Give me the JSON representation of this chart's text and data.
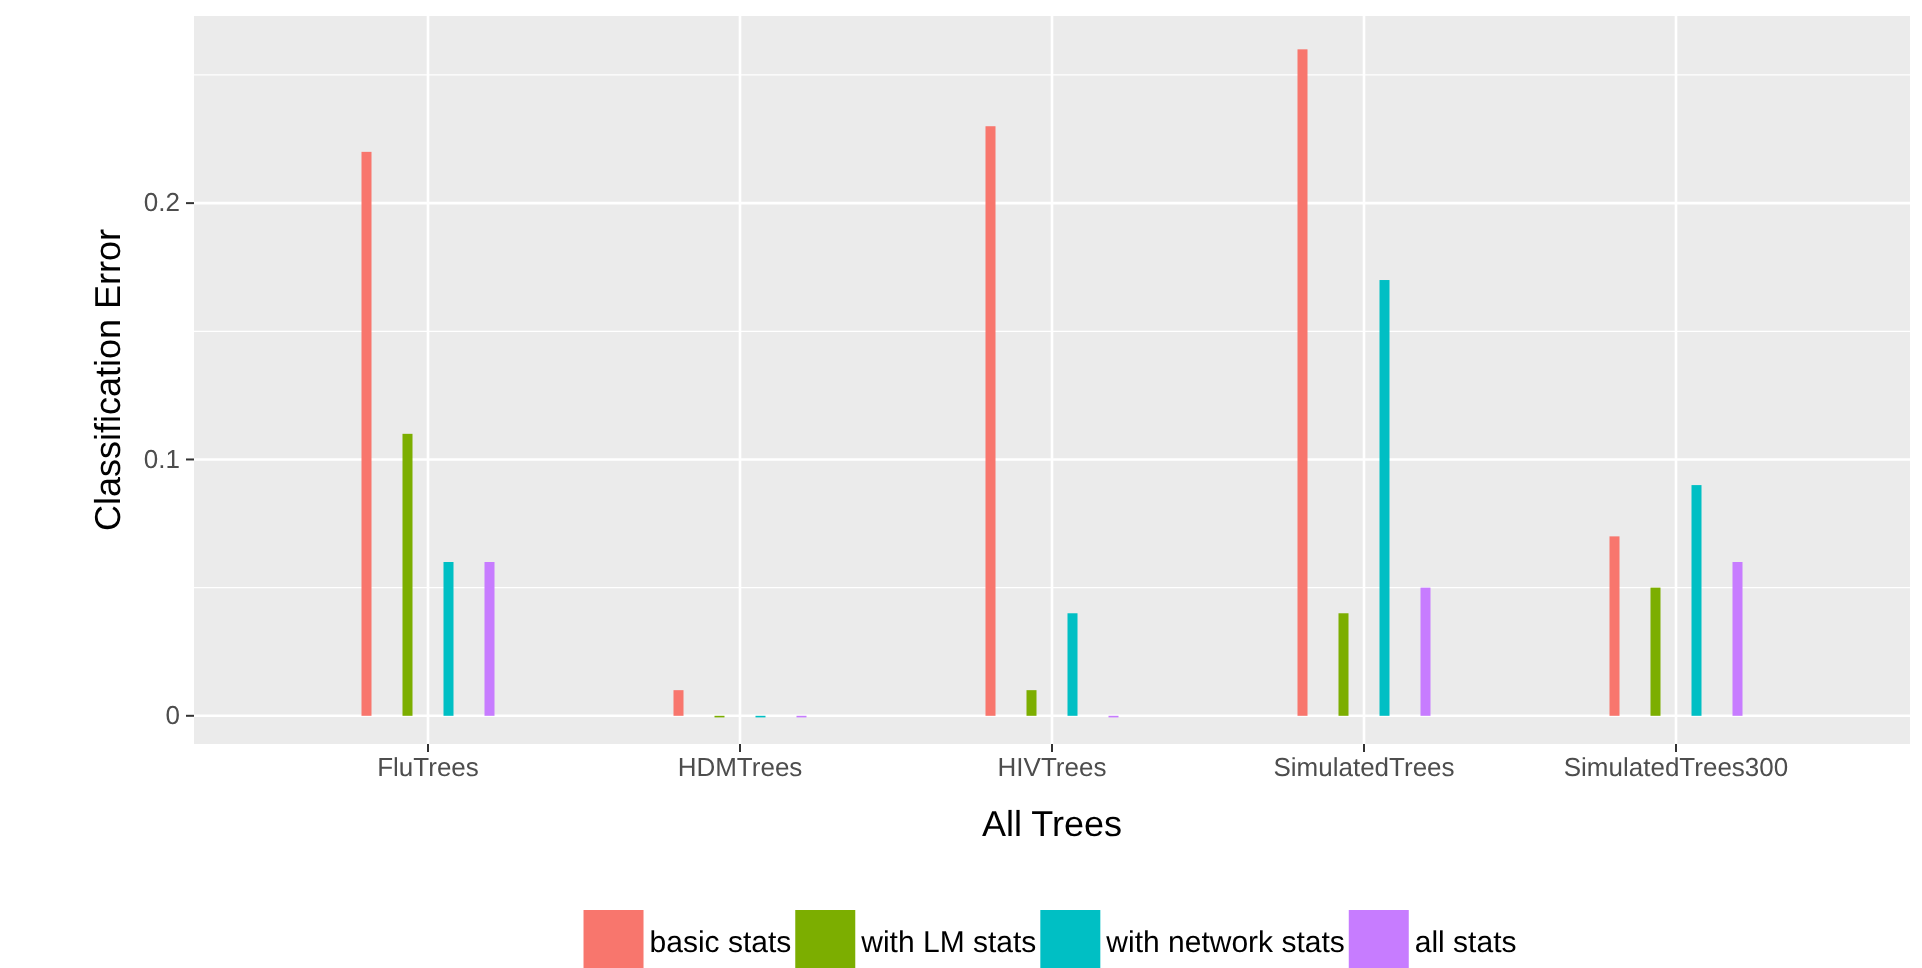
{
  "chart_data": {
    "type": "bar",
    "xlabel": "All Trees",
    "ylabel": "Classification Error",
    "categories": [
      "FluTrees",
      "HDMTrees",
      "HIVTrees",
      "SimulatedTrees",
      "SimulatedTrees300"
    ],
    "series": [
      {
        "name": "basic stats",
        "color": "#f8766d",
        "values": [
          0.22,
          0.01,
          0.23,
          0.26,
          0.07
        ]
      },
      {
        "name": "with LM stats",
        "color": "#7cae00",
        "values": [
          0.11,
          0,
          0.01,
          0.04,
          0.05
        ]
      },
      {
        "name": "with network stats",
        "color": "#00bfc4",
        "values": [
          0.06,
          0,
          0.04,
          0.17,
          0.09
        ]
      },
      {
        "name": "all stats",
        "color": "#c77cff",
        "values": [
          0.06,
          0,
          0,
          0.05,
          0.06
        ]
      }
    ],
    "ylim": [
      -0.011,
      0.273
    ],
    "yticks": [
      {
        "value": 0,
        "label": "0"
      },
      {
        "value": 0.05,
        "label": null
      },
      0.1,
      {
        "value": 0.15,
        "label": null
      },
      0.2,
      {
        "value": 0.25,
        "label": null
      }
    ],
    "grid": true,
    "legend": "bottom"
  }
}
